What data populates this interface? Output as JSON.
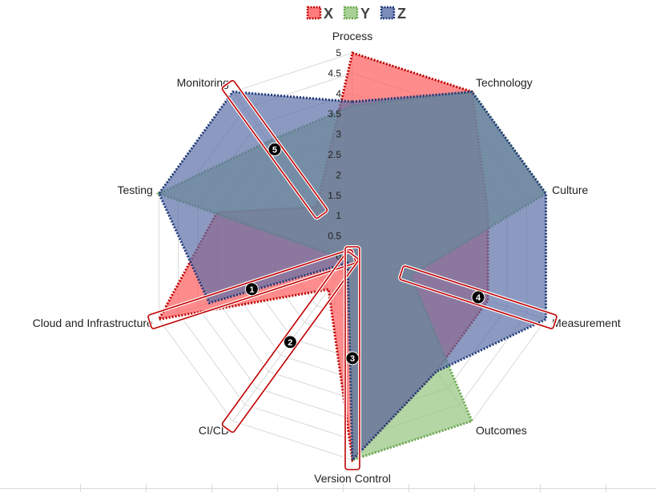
{
  "chart_data": {
    "type": "radar",
    "title": "",
    "axes": [
      "Process",
      "Technology",
      "Culture",
      "Measurement",
      "Outcomes",
      "Version Control",
      "CI/CD",
      "Cloud and Infrastructure",
      "Testing",
      "Monitoring"
    ],
    "ticks": [
      "0",
      "0.5",
      "1",
      "1.5",
      "2",
      "2.5",
      "3",
      "3.5",
      "4",
      "4.5",
      "5"
    ],
    "range": [
      0,
      5
    ],
    "series": [
      {
        "name": "X",
        "color": "#ff5b5b",
        "border": "#c00000",
        "values": [
          5,
          5,
          3.5,
          3.5,
          3.5,
          5,
          1,
          5,
          3.5,
          1.5
        ]
      },
      {
        "name": "Y",
        "color": "#93c47d",
        "border": "#6aa84f",
        "values": [
          3.7,
          5,
          5,
          1.5,
          5,
          5,
          0.2,
          0.2,
          5,
          3.5
        ]
      },
      {
        "name": "Z",
        "color": "#5b6fa6",
        "border": "#1f3a7a",
        "values": [
          3.8,
          5,
          5,
          5,
          3.5,
          5,
          0.2,
          3.7,
          5,
          5
        ]
      }
    ],
    "legend_position": "top",
    "annotations": [
      {
        "label": "1",
        "from": [
          "Cloud and Infrastructure",
          5
        ],
        "to": [
          "Cloud and Infrastructure",
          0.2
        ]
      },
      {
        "label": "2",
        "from": [
          "CI/CD",
          5
        ],
        "to": [
          "CI/CD",
          0.2
        ]
      },
      {
        "label": "3",
        "from": [
          "Version Control",
          5
        ],
        "to": [
          "Version Control",
          0
        ]
      },
      {
        "label": "4",
        "from": [
          "Measurement",
          5
        ],
        "to": [
          "Measurement",
          1.5
        ]
      },
      {
        "label": "5",
        "from": [
          "Monitoring",
          5
        ],
        "to": [
          "Monitoring",
          1.5
        ]
      }
    ]
  }
}
